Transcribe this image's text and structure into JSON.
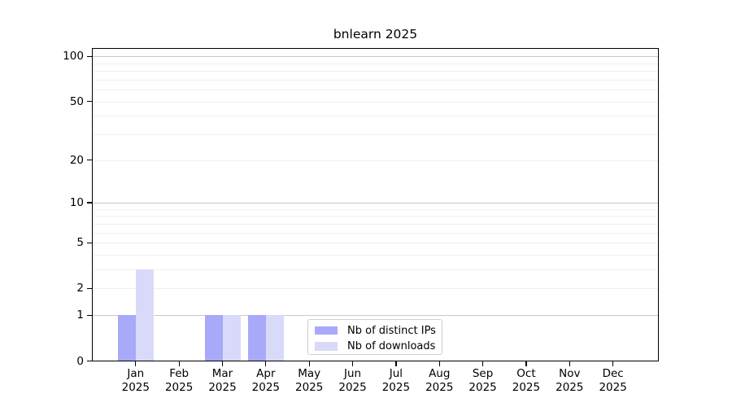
{
  "chart_data": {
    "type": "bar",
    "title": "bnlearn 2025",
    "categories": [
      "Jan 2025",
      "Feb 2025",
      "Mar 2025",
      "Apr 2025",
      "May 2025",
      "Jun 2025",
      "Jul 2025",
      "Aug 2025",
      "Sep 2025",
      "Oct 2025",
      "Nov 2025",
      "Dec 2025"
    ],
    "x_tick_months": [
      "Jan",
      "Feb",
      "Mar",
      "Apr",
      "May",
      "Jun",
      "Jul",
      "Aug",
      "Sep",
      "Oct",
      "Nov",
      "Dec"
    ],
    "x_tick_year": "2025",
    "series": [
      {
        "name": "Nb of distinct IPs",
        "color": "#a9a9f9",
        "values": [
          1,
          0,
          1,
          1,
          0,
          0,
          0,
          0,
          0,
          0,
          0,
          0
        ]
      },
      {
        "name": "Nb of downloads",
        "color": "#d9d9f9",
        "values": [
          3,
          0,
          1,
          1,
          0,
          0,
          0,
          0,
          0,
          0,
          0,
          0
        ]
      }
    ],
    "y_axis": {
      "scale": "log1p",
      "ticks": [
        0,
        1,
        2,
        5,
        10,
        20,
        50,
        100
      ],
      "gridlines_light": [
        2,
        3,
        4,
        5,
        6,
        7,
        8,
        9,
        20,
        30,
        40,
        50,
        60,
        70,
        80,
        90
      ],
      "gridlines_dark": [
        1,
        10,
        100
      ],
      "range": [
        0,
        113.5
      ]
    },
    "legend_position": "bottom-center-inside",
    "grid": true
  },
  "styles": {
    "background": "#ffffff",
    "axis_color": "#000000",
    "text_color": "#000000",
    "major_grid_color": "#c9c9c9",
    "minor_grid_color": "#efefef",
    "legend_border_color": "#cfcfcf"
  }
}
